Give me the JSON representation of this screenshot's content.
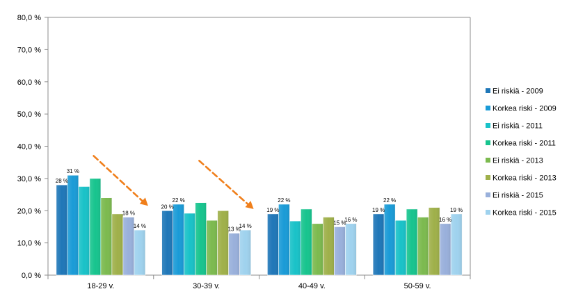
{
  "chart_data": {
    "type": "bar",
    "categories": [
      "18-29 v.",
      "30-39 v.",
      "40-49 v.",
      "50-59 v."
    ],
    "y_ticks": [
      "0,0 %",
      "10,0 %",
      "20,0 %",
      "30,0 %",
      "40,0 %",
      "50,0 %",
      "60,0 %",
      "70,0 %",
      "80,0 %"
    ],
    "ylim": [
      0,
      80
    ],
    "grid": false,
    "legend_position": "right",
    "series": [
      {
        "name": "Ei riskiä - 2009",
        "color": "#1f77b8",
        "values": [
          28,
          20,
          19,
          19
        ],
        "labels": [
          "28 %",
          "20 %",
          "19 %",
          "19 %"
        ]
      },
      {
        "name": "Korkea riski - 2009",
        "color": "#1a9bd7",
        "values": [
          31,
          22,
          22,
          22
        ],
        "labels": [
          "31 %",
          "22 %",
          "22 %",
          "22 %"
        ]
      },
      {
        "name": "Ei riskiä - 2011",
        "color": "#19c2c8",
        "values": [
          27.5,
          19.2,
          16.8,
          17
        ],
        "labels": [
          "",
          "",
          "",
          ""
        ]
      },
      {
        "name": "Korkea riski - 2011",
        "color": "#17c48e",
        "values": [
          30,
          22.5,
          20.5,
          20.5
        ],
        "labels": [
          "",
          "",
          "",
          ""
        ]
      },
      {
        "name": "Ei riskiä - 2013",
        "color": "#7cba4f",
        "values": [
          24,
          17,
          16,
          18
        ],
        "labels": [
          "",
          "",
          "",
          ""
        ]
      },
      {
        "name": "Korkea riski - 2013",
        "color": "#9fb04a",
        "values": [
          19,
          20,
          18,
          21
        ],
        "labels": [
          "",
          "",
          "",
          ""
        ]
      },
      {
        "name": "Ei riskiä - 2015",
        "color": "#99b0db",
        "values": [
          18,
          13,
          15,
          16
        ],
        "labels": [
          "18 %",
          "13 %",
          "15 %",
          "16 %"
        ]
      },
      {
        "name": "Korkea riski - 2015",
        "color": "#9fd2ee",
        "values": [
          14,
          14,
          16,
          19
        ],
        "labels": [
          "14 %",
          "14 %",
          "16 %",
          "19 %"
        ]
      }
    ],
    "annotations": [
      {
        "type": "dashed-arrow",
        "color": "#f07f1b",
        "from": {
          "category": "18-29 v.",
          "value": 37
        },
        "to": {
          "category": "18-29 v.",
          "value": 21.5
        }
      },
      {
        "type": "dashed-arrow",
        "color": "#f07f1b",
        "from": {
          "category": "30-39 v.",
          "value": 35.5
        },
        "to": {
          "category": "30-39 v.",
          "value": 20.5
        }
      }
    ]
  }
}
